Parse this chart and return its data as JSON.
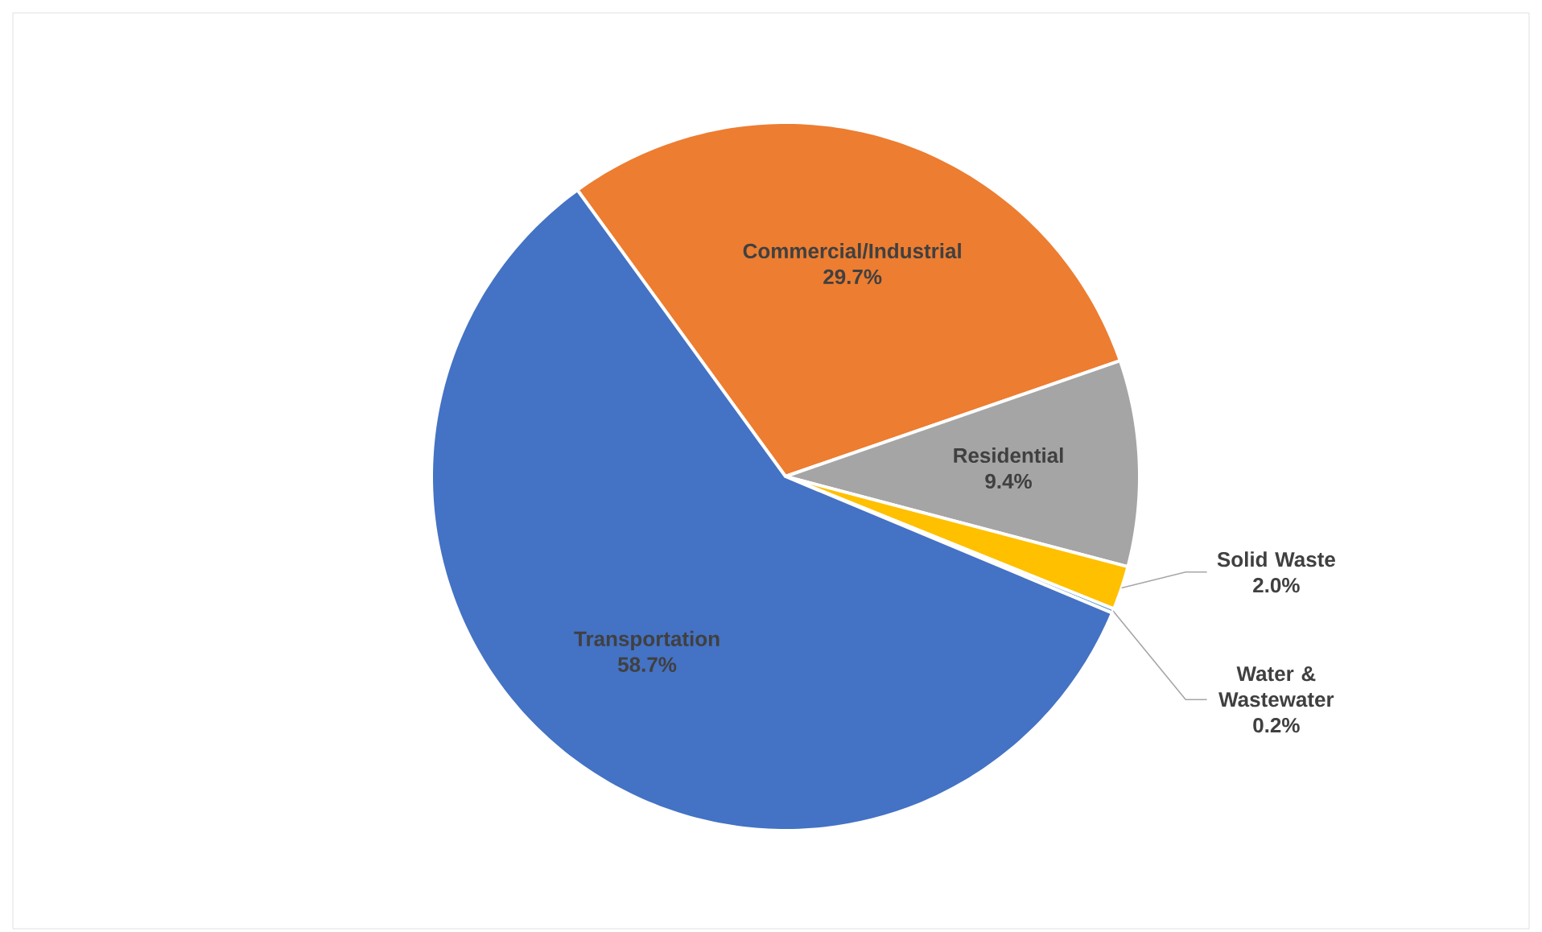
{
  "chart_data": {
    "type": "pie",
    "categories": [
      "Commercial/Industrial",
      "Residential",
      "Solid Waste",
      "Water & Wastewater",
      "Transportation"
    ],
    "values": [
      29.7,
      9.4,
      2.0,
      0.2,
      58.7
    ],
    "value_labels": [
      "29.7%",
      "9.4%",
      "2.0%",
      "0.2%",
      "58.7%"
    ],
    "colors": [
      "#ed7d31",
      "#a5a5a5",
      "#ffc000",
      "#5b9bd5",
      "#4472c4"
    ]
  }
}
